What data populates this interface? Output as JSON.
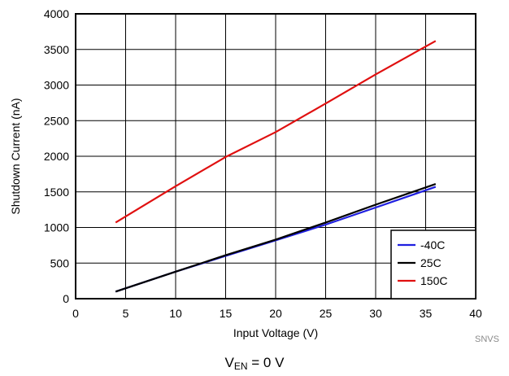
{
  "chart_data": {
    "type": "line",
    "xlabel": "Input Voltage (V)",
    "ylabel": "Shutdown Current (nA)",
    "xlim": [
      0,
      40
    ],
    "ylim": [
      0,
      4000
    ],
    "x_ticks": [
      "0",
      "5",
      "10",
      "15",
      "20",
      "25",
      "30",
      "35",
      "40"
    ],
    "y_ticks": [
      "0",
      "500",
      "1000",
      "1500",
      "2000",
      "2500",
      "3000",
      "3500",
      "4000"
    ],
    "grid": true,
    "legend_position": "bottom-right",
    "series": [
      {
        "name": "-40C",
        "color": "#1f1fe0",
        "points": [
          [
            4,
            100
          ],
          [
            10,
            380
          ],
          [
            15,
            600
          ],
          [
            20,
            820
          ],
          [
            25,
            1040
          ],
          [
            30,
            1280
          ],
          [
            36,
            1570
          ]
        ]
      },
      {
        "name": "25C",
        "color": "#000000",
        "points": [
          [
            4,
            100
          ],
          [
            10,
            380
          ],
          [
            15,
            610
          ],
          [
            20,
            830
          ],
          [
            25,
            1070
          ],
          [
            30,
            1320
          ],
          [
            36,
            1610
          ]
        ]
      },
      {
        "name": "150C",
        "color": "#e01010",
        "points": [
          [
            4,
            1070
          ],
          [
            10,
            1580
          ],
          [
            15,
            1990
          ],
          [
            20,
            2340
          ],
          [
            25,
            2740
          ],
          [
            30,
            3150
          ],
          [
            36,
            3620
          ]
        ]
      }
    ]
  },
  "source_note": "SNVS",
  "caption": {
    "main": "V",
    "sub": "EN",
    "rest": " = 0 V"
  }
}
